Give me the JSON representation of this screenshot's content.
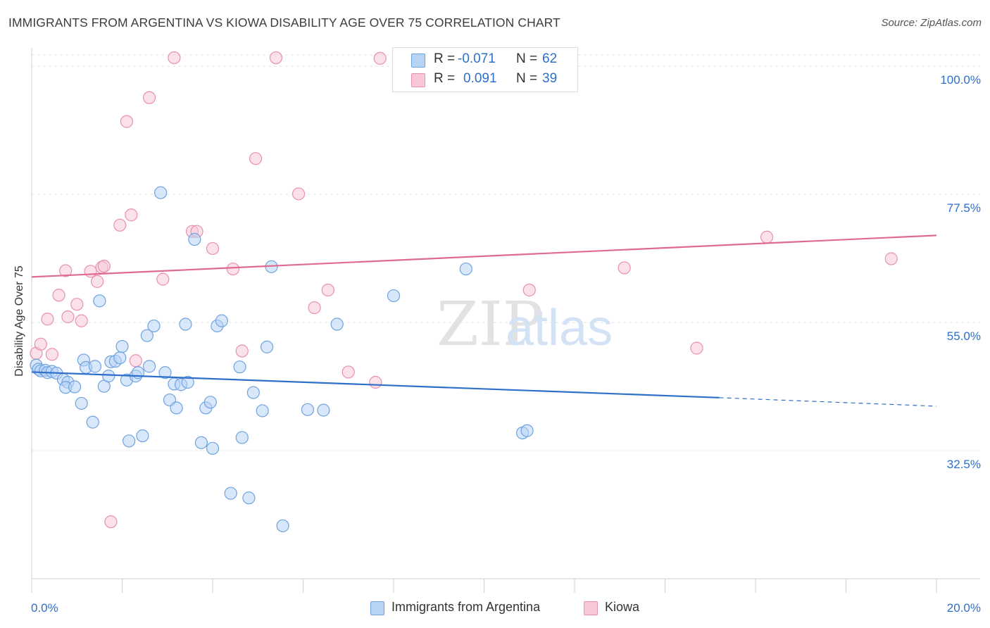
{
  "title": "IMMIGRANTS FROM ARGENTINA VS KIOWA DISABILITY AGE OVER 75 CORRELATION CHART",
  "source": "Source: ZipAtlas.com",
  "watermark": {
    "zip": "ZIP",
    "atlas": "atlas"
  },
  "stats": {
    "series1": {
      "r_label": "R =",
      "r_value": "-0.071",
      "n_label": "N =",
      "n_value": "62"
    },
    "series2": {
      "r_label": "R =",
      "r_value": "0.091",
      "n_label": "N =",
      "n_value": "39"
    }
  },
  "legend": {
    "series1": "Immigrants from Argentina",
    "series2": "Kiowa"
  },
  "colors": {
    "series1_fill": "#b8d4f5",
    "series1_stroke": "#6fa3e0",
    "series1_line": "#2e6fca",
    "series2_fill": "#f8c8d8",
    "series2_stroke": "#e890ad",
    "series2_line": "#e06a92",
    "accent_text": "#2e6fca"
  },
  "chart_data": {
    "type": "scatter",
    "title": "IMMIGRANTS FROM ARGENTINA VS KIOWA DISABILITY AGE OVER 75 CORRELATION CHART",
    "xlabel": "",
    "ylabel": "Disability Age Over 75",
    "xlim": [
      0,
      20
    ],
    "ylim": [
      10,
      102
    ],
    "x_tick_labels": [
      "0.0%",
      "20.0%"
    ],
    "y_ticks": [
      32.5,
      55.0,
      77.5,
      100.0
    ],
    "y_tick_labels": [
      "32.5%",
      "55.0%",
      "77.5%",
      "100.0%"
    ],
    "grid": true,
    "series": [
      {
        "name": "Immigrants from Argentina",
        "points": [
          [
            0.1,
            47.5
          ],
          [
            0.15,
            46.8
          ],
          [
            0.2,
            46.5
          ],
          [
            0.3,
            46.6
          ],
          [
            0.35,
            46.2
          ],
          [
            0.45,
            46.4
          ],
          [
            0.55,
            46.1
          ],
          [
            0.7,
            45.0
          ],
          [
            0.8,
            44.5
          ],
          [
            0.75,
            43.6
          ],
          [
            0.95,
            43.7
          ],
          [
            1.1,
            40.8
          ],
          [
            1.15,
            48.4
          ],
          [
            1.2,
            47.1
          ],
          [
            1.35,
            37.5
          ],
          [
            1.4,
            47.3
          ],
          [
            1.5,
            58.8
          ],
          [
            1.6,
            43.8
          ],
          [
            1.7,
            45.6
          ],
          [
            1.75,
            48.1
          ],
          [
            1.85,
            48.2
          ],
          [
            1.95,
            48.8
          ],
          [
            2.0,
            50.8
          ],
          [
            2.1,
            44.9
          ],
          [
            2.15,
            34.2
          ],
          [
            2.3,
            45.6
          ],
          [
            2.35,
            46.2
          ],
          [
            2.45,
            35.1
          ],
          [
            2.55,
            52.7
          ],
          [
            2.6,
            47.3
          ],
          [
            2.7,
            54.4
          ],
          [
            2.85,
            77.8
          ],
          [
            2.95,
            46.2
          ],
          [
            3.05,
            41.4
          ],
          [
            3.15,
            44.2
          ],
          [
            3.2,
            40.0
          ],
          [
            3.3,
            44.1
          ],
          [
            3.4,
            54.7
          ],
          [
            3.45,
            44.5
          ],
          [
            3.6,
            69.6
          ],
          [
            3.75,
            33.9
          ],
          [
            3.85,
            40.0
          ],
          [
            3.95,
            41.0
          ],
          [
            4.0,
            32.9
          ],
          [
            4.1,
            54.4
          ],
          [
            4.2,
            55.3
          ],
          [
            4.4,
            25.0
          ],
          [
            4.6,
            47.2
          ],
          [
            4.65,
            34.8
          ],
          [
            4.8,
            24.2
          ],
          [
            4.9,
            42.7
          ],
          [
            5.1,
            39.5
          ],
          [
            5.2,
            50.7
          ],
          [
            5.3,
            64.8
          ],
          [
            5.55,
            19.3
          ],
          [
            6.1,
            39.7
          ],
          [
            6.45,
            39.6
          ],
          [
            6.75,
            54.7
          ],
          [
            8.0,
            59.7
          ],
          [
            9.6,
            64.4
          ],
          [
            10.85,
            35.6
          ],
          [
            10.95,
            36.0
          ]
        ]
      },
      {
        "name": "Kiowa",
        "points": [
          [
            0.1,
            49.6
          ],
          [
            0.2,
            51.2
          ],
          [
            0.35,
            55.6
          ],
          [
            0.45,
            49.4
          ],
          [
            0.6,
            59.8
          ],
          [
            0.75,
            64.1
          ],
          [
            0.8,
            56.0
          ],
          [
            1.0,
            58.2
          ],
          [
            1.1,
            55.3
          ],
          [
            1.3,
            64.0
          ],
          [
            1.45,
            62.2
          ],
          [
            1.55,
            64.7
          ],
          [
            1.6,
            64.9
          ],
          [
            1.75,
            20.0
          ],
          [
            1.95,
            72.1
          ],
          [
            2.1,
            90.3
          ],
          [
            2.2,
            73.9
          ],
          [
            2.3,
            48.3
          ],
          [
            2.6,
            94.5
          ],
          [
            2.9,
            62.6
          ],
          [
            3.15,
            101.5
          ],
          [
            3.55,
            71.0
          ],
          [
            3.65,
            71.0
          ],
          [
            4.0,
            68.0
          ],
          [
            4.45,
            64.4
          ],
          [
            4.65,
            50.0
          ],
          [
            4.95,
            83.8
          ],
          [
            5.4,
            101.5
          ],
          [
            5.9,
            77.6
          ],
          [
            6.25,
            57.6
          ],
          [
            6.55,
            60.7
          ],
          [
            7.0,
            46.3
          ],
          [
            7.6,
            44.5
          ],
          [
            7.7,
            101.4
          ],
          [
            11.0,
            60.7
          ],
          [
            13.1,
            64.6
          ],
          [
            14.7,
            50.5
          ],
          [
            16.25,
            70.0
          ],
          [
            19.0,
            66.2
          ]
        ]
      }
    ],
    "trendlines": [
      {
        "series": "Immigrants from Argentina",
        "x": [
          0,
          15.2
        ],
        "y": [
          46.3,
          41.8
        ],
        "dashed_to": [
          20,
          40.3
        ]
      },
      {
        "series": "Kiowa",
        "x": [
          0,
          20
        ],
        "y": [
          63.0,
          70.3
        ]
      }
    ]
  }
}
